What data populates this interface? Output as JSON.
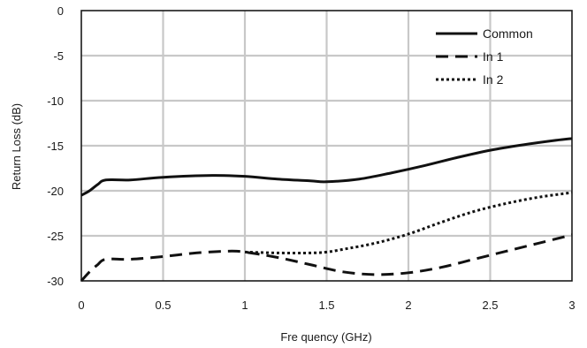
{
  "chart_data": {
    "type": "line",
    "xlabel": "Fre quency (GHz)",
    "ylabel": "Return Loss (dB)",
    "xlim": [
      0,
      3
    ],
    "ylim": [
      -30,
      0
    ],
    "x_ticks": [
      "0",
      "0.5",
      "1",
      "1.5",
      "2",
      "2.5",
      "3"
    ],
    "y_ticks": [
      "0",
      "-5",
      "-10",
      "-15",
      "-20",
      "-25",
      "-30"
    ],
    "grid": true,
    "legend_position": "top-right",
    "series": [
      {
        "name": "Common",
        "style": "solid",
        "x": [
          0,
          0.05,
          0.1,
          0.15,
          0.3,
          0.5,
          0.8,
          1.0,
          1.2,
          1.4,
          1.5,
          1.7,
          1.9,
          2.1,
          2.3,
          2.5,
          2.7,
          2.9,
          3.0
        ],
        "y": [
          -20.5,
          -20.0,
          -19.3,
          -18.8,
          -18.8,
          -18.5,
          -18.3,
          -18.4,
          -18.7,
          -18.9,
          -19.0,
          -18.7,
          -18.0,
          -17.2,
          -16.3,
          -15.5,
          -14.9,
          -14.4,
          -14.2
        ]
      },
      {
        "name": "In 1",
        "style": "dashed",
        "x": [
          0,
          0.05,
          0.1,
          0.15,
          0.3,
          0.5,
          0.7,
          0.9,
          1.0,
          1.2,
          1.4,
          1.6,
          1.8,
          2.0,
          2.2,
          2.4,
          2.6,
          2.8,
          3.0
        ],
        "y": [
          -30.0,
          -29.0,
          -28.2,
          -27.6,
          -27.6,
          -27.3,
          -26.9,
          -26.7,
          -26.8,
          -27.4,
          -28.2,
          -29.0,
          -29.3,
          -29.1,
          -28.5,
          -27.6,
          -26.7,
          -25.8,
          -24.9
        ]
      },
      {
        "name": "In 2",
        "style": "dotted",
        "x": [
          1.0,
          1.2,
          1.4,
          1.5,
          1.6,
          1.8,
          2.0,
          2.2,
          2.4,
          2.6,
          2.8,
          3.0
        ],
        "y": [
          -26.8,
          -26.9,
          -26.9,
          -26.8,
          -26.5,
          -25.8,
          -24.8,
          -23.5,
          -22.3,
          -21.4,
          -20.7,
          -20.2
        ]
      }
    ]
  }
}
